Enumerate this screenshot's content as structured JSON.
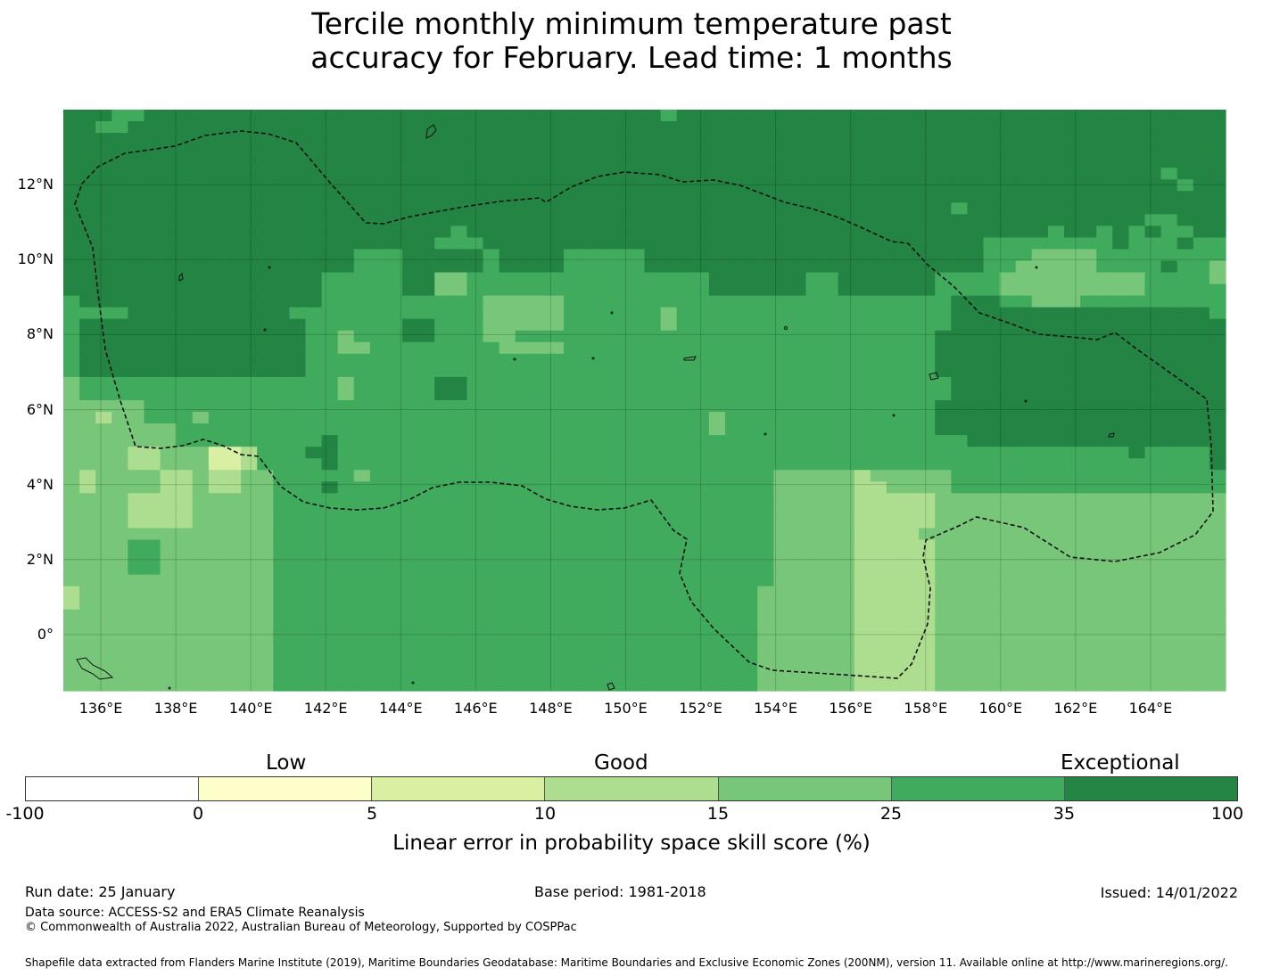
{
  "title": {
    "line1": "Tercile monthly minimum temperature past",
    "line2": "accuracy for February. Lead time: 1 months"
  },
  "map": {
    "lat_labels": [
      "12°N",
      "10°N",
      "8°N",
      "6°N",
      "4°N",
      "2°N",
      "0°"
    ],
    "lat_values": [
      12,
      10,
      8,
      6,
      4,
      2,
      0
    ],
    "lon_labels": [
      "136°E",
      "138°E",
      "140°E",
      "142°E",
      "144°E",
      "146°E",
      "148°E",
      "150°E",
      "152°E",
      "154°E",
      "156°E",
      "158°E",
      "160°E",
      "162°E",
      "164°E"
    ],
    "lon_values": [
      136,
      138,
      140,
      142,
      144,
      146,
      148,
      150,
      152,
      154,
      156,
      158,
      160,
      162,
      164
    ],
    "extent": {
      "lon_min": 135,
      "lon_max": 166,
      "lat_min": -1.5,
      "lat_max": 14
    },
    "cell_size_deg": 0.8,
    "grid_rows_note": "class index per cell, north to south; 0=-100..0, 1=0..5, 2=5..10, 3=10..15, 4=15..25, 5=25..35, 6=35..100",
    "grid": [
      "666556666666666666666666666666666666656666666666666666666666666666666666",
      "665566666666666666666666666666666666666666666666666666666666666666666666",
      "666666666666666666666666666666666666666666666666666666666666666666666666",
      "666666666666666666666666666666666666666666666666666666666666666666666666",
      "666666666666666666666666666666666666666666666666666666666666666666666666",
      "666666666666666666666666666666666666666666666666666666666666666666665666",
      "666666666666666666666666666666666666666666666666666666666666666666666566",
      "666666666666666666666666666666666666666666666666666666666666666666666666",
      "666666666666666666666666666666666666666666666666666666656666666666666666",
      "666666666666666666666666666666666666666666666666666666666666666666655666",
      "666666666666666666666666566666666666666666666666666666666666656656565566",
      "666666666666666666666665556666666666666666666666666666666555555556555655",
      "666666666666666666555666665666655555666666666666666666666555444455555555",
      "666666666666666666555666665666655555666666666666666666666554444455556554",
      "666666666666666655555664455555555555555566666655666666555544444444455554",
      "666666666666666655555664455555555555555566666655666666555544444444455555",
      "566666666666666655555555554444455555555555555555555555566655444555555555",
      "555566666666665555555555554444455555545555555555555555566666666666666665",
      "566666666666666555555665554444455555545555555555555555566666666666666666",
      "566666666666666554555665554455555555555555555555555555666666666666666666",
      "566666666666666554455555555444455555555555555555555555666666666666666666",
      "566666666666666555555555555555555555555555555555555555666666666666666666",
      "566666666666666555555555555555555555555555555555555555666666666666666666",
      "455555555555555554555556655555555555555555555555555555566666666666666666",
      "455555555555555554555556655555555555555555555555555555566666666666666666",
      "444445555555555555555555555555555555555555555555555555666666666666666666",
      "443445554555555555555555555555555555555545555555555555666666666666666666",
      "444444455555555555555555555555555555555545555555555555666666666666666666",
      "444444455555555565555555555555555555555555555555555555556666666666666666",
      "444433444223555665555555555555555555555555555555555555555555555555655556",
      "444433444223555565555555555555555555555555555555555555555555555555555556",
      "434444334334455555455555555555555555555555554444434444455555555555555555",
      "434444334334455565555555555555555555555555554444433444455555555555555555",
      "444433334444455555555555555555555555555555554444433333444444444444444444",
      "444433334444455555555555555555555555555555554444433333444444444444444444",
      "444433334444455555555555555555555555555555554444433333444444444444444444",
      "444444444444455555555555555555555555555555554444433334444444444444444444",
      "444455444444455555555555555555555555555555554444433333444444444444444444",
      "444455444444455555555555555555555555555555554444433333444444444444444444",
      "444455444444455555555555555555555555555555554444433333444444444444444444",
      "444444444444455555555555555555555555555555554444433333444444444444444444",
      "344444444444455555555555555555555555555555544444433333444444444444444444",
      "344444444444455555555555555555555555555555544444433333444444444444444444",
      "444444444444455555555555555555555555555555544444433333444444444444444444",
      "444444444444455555555555555555555555555555544444433333444444444444444444",
      "444444444444455555555555555555555555555555544444433333444444444444444444",
      "444444444444455555555555555555555555555555544444433333444444444444444444",
      "444444444444455555555555555555555555555555544444433333444444444444444444",
      "444444444444455555555555555555555555555555544444433333444444444444444444",
      "444444444444455555555555555555555555555555544444433333444444444444444444"
    ]
  },
  "colorbar": {
    "categories": [
      "Low",
      "Good",
      "Exceptional"
    ],
    "ticks": [
      "-100",
      "0",
      "5",
      "10",
      "15",
      "25",
      "35",
      "100"
    ],
    "colors": [
      "#ffffff",
      "#ffffcc",
      "#d9f0a3",
      "#addd8e",
      "#78c679",
      "#41ab5d",
      "#238443"
    ],
    "label": "Linear error in probability space skill score (%)"
  },
  "footer": {
    "run_date": "Run date: 25 January",
    "base_period": "Base period: 1981-2018",
    "issued": "Issued: 14/01/2022",
    "data_source": "Data source: ACCESS-S2 and ERA5 Climate Reanalysis",
    "copyright": "© Commonwealth of Australia 2022, Australian Bureau of Meteorology, Supported by COSPPac",
    "shapefile": "Shapefile data extracted from Flanders Marine Institute (2019), Maritime Boundaries Geodatabase: Maritime Boundaries and Exclusive Economic Zones (200NM), version 11. Available online at http://www.marineregions.org/."
  }
}
